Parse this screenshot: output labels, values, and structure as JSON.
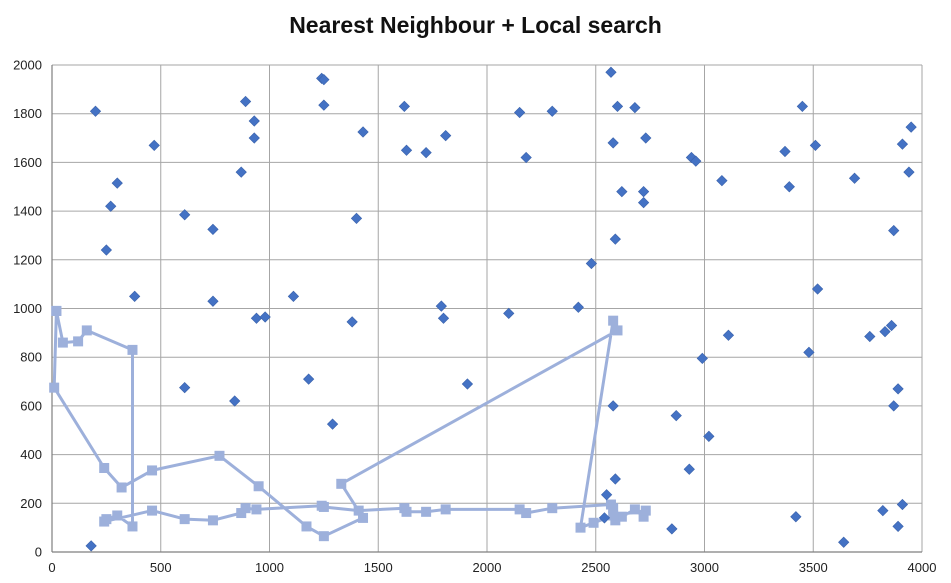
{
  "chart_data": {
    "type": "scatter",
    "title": "Nearest Neighbour + Local search",
    "xlabel": "",
    "ylabel": "",
    "xlim": [
      0,
      4000
    ],
    "ylim": [
      0,
      2000
    ],
    "x_ticks": [
      0,
      500,
      1000,
      1500,
      2000,
      2500,
      3000,
      3500,
      4000
    ],
    "y_ticks": [
      0,
      200,
      400,
      600,
      800,
      1000,
      1200,
      1400,
      1600,
      1800,
      2000
    ],
    "grid": true,
    "colors": {
      "points": "#4472C4",
      "route": "#9DB0DB",
      "grid": "#A6A6A6",
      "axis": "#7F7F7F"
    },
    "series": [
      {
        "type": "scatter",
        "marker": "diamond",
        "points": [
          [
            180,
            25
          ],
          [
            200,
            1810
          ],
          [
            250,
            1240
          ],
          [
            270,
            1420
          ],
          [
            300,
            1515
          ],
          [
            380,
            1050
          ],
          [
            470,
            1670
          ],
          [
            610,
            1385
          ],
          [
            610,
            675
          ],
          [
            740,
            1325
          ],
          [
            740,
            1030
          ],
          [
            840,
            620
          ],
          [
            870,
            1560
          ],
          [
            890,
            1850
          ],
          [
            930,
            1770
          ],
          [
            930,
            1700
          ],
          [
            940,
            960
          ],
          [
            980,
            965
          ],
          [
            1110,
            1050
          ],
          [
            1180,
            710
          ],
          [
            1240,
            1945
          ],
          [
            1250,
            1940
          ],
          [
            1250,
            1835
          ],
          [
            1290,
            525
          ],
          [
            1380,
            945
          ],
          [
            1400,
            1370
          ],
          [
            1430,
            1725
          ],
          [
            1620,
            1830
          ],
          [
            1630,
            1650
          ],
          [
            1720,
            1640
          ],
          [
            1790,
            1010
          ],
          [
            1800,
            960
          ],
          [
            1810,
            1710
          ],
          [
            1910,
            690
          ],
          [
            2100,
            980
          ],
          [
            2150,
            1805
          ],
          [
            2180,
            1620
          ],
          [
            2300,
            1810
          ],
          [
            2420,
            1005
          ],
          [
            2480,
            1185
          ],
          [
            2540,
            140
          ],
          [
            2550,
            235
          ],
          [
            2570,
            1970
          ],
          [
            2580,
            600
          ],
          [
            2580,
            1680
          ],
          [
            2590,
            300
          ],
          [
            2590,
            1285
          ],
          [
            2600,
            1830
          ],
          [
            2620,
            1480
          ],
          [
            2680,
            1825
          ],
          [
            2720,
            1480
          ],
          [
            2720,
            1435
          ],
          [
            2730,
            1700
          ],
          [
            2850,
            95
          ],
          [
            2870,
            560
          ],
          [
            2930,
            340
          ],
          [
            2940,
            1620
          ],
          [
            2960,
            1605
          ],
          [
            2990,
            795
          ],
          [
            3020,
            475
          ],
          [
            3080,
            1525
          ],
          [
            3110,
            890
          ],
          [
            3370,
            1645
          ],
          [
            3390,
            1500
          ],
          [
            3420,
            145
          ],
          [
            3450,
            1830
          ],
          [
            3480,
            820
          ],
          [
            3510,
            1670
          ],
          [
            3520,
            1080
          ],
          [
            3640,
            40
          ],
          [
            3690,
            1535
          ],
          [
            3760,
            885
          ],
          [
            3820,
            170
          ],
          [
            3830,
            905
          ],
          [
            3860,
            930
          ],
          [
            3870,
            600
          ],
          [
            3870,
            1320
          ],
          [
            3890,
            670
          ],
          [
            3890,
            105
          ],
          [
            3910,
            195
          ],
          [
            3910,
            1675
          ],
          [
            3940,
            1560
          ],
          [
            3950,
            1745
          ]
        ]
      },
      {
        "type": "line",
        "marker": "square",
        "points": [
          [
            20,
            990
          ],
          [
            50,
            860
          ],
          [
            120,
            865
          ],
          [
            160,
            910
          ],
          [
            370,
            830
          ],
          [
            370,
            105
          ],
          [
            300,
            150
          ],
          [
            250,
            135
          ],
          [
            240,
            125
          ],
          [
            460,
            170
          ],
          [
            610,
            135
          ],
          [
            740,
            130
          ],
          [
            870,
            160
          ],
          [
            890,
            180
          ],
          [
            940,
            175
          ],
          [
            1240,
            190
          ],
          [
            1250,
            185
          ],
          [
            1410,
            170
          ],
          [
            1620,
            180
          ],
          [
            1630,
            165
          ],
          [
            1720,
            165
          ],
          [
            1810,
            175
          ],
          [
            2150,
            175
          ],
          [
            2180,
            160
          ],
          [
            2300,
            180
          ],
          [
            2570,
            195
          ],
          [
            2580,
            180
          ],
          [
            2590,
            130
          ],
          [
            2620,
            145
          ],
          [
            2680,
            175
          ],
          [
            2720,
            145
          ],
          [
            2730,
            170
          ],
          [
            2580,
            150
          ],
          [
            2490,
            120
          ],
          [
            2430,
            100
          ],
          [
            2580,
            950
          ],
          [
            2600,
            910
          ],
          [
            1330,
            280
          ],
          [
            1430,
            140
          ],
          [
            1250,
            65
          ],
          [
            1170,
            105
          ],
          [
            950,
            270
          ],
          [
            770,
            395
          ],
          [
            460,
            335
          ],
          [
            320,
            265
          ],
          [
            240,
            345
          ],
          [
            10,
            675
          ],
          [
            20,
            990
          ]
        ]
      }
    ]
  }
}
